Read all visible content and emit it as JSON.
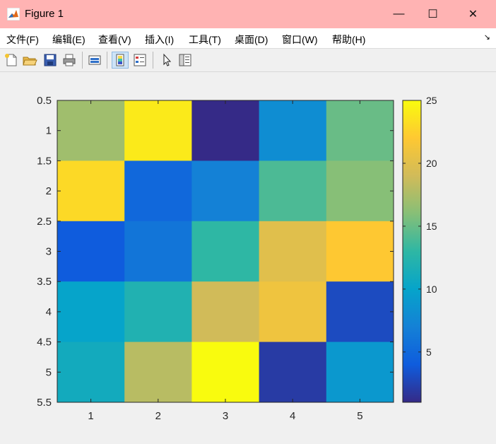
{
  "window": {
    "title": "Figure 1",
    "minimize_glyph": "—",
    "maximize_glyph": "☐",
    "close_glyph": "✕"
  },
  "menu": [
    {
      "label": "文件(F)"
    },
    {
      "label": "编辑(E)"
    },
    {
      "label": "查看(V)"
    },
    {
      "label": "插入(I)"
    },
    {
      "label": "工具(T)"
    },
    {
      "label": "桌面(D)"
    },
    {
      "label": "窗口(W)"
    },
    {
      "label": "帮助(H)"
    }
  ],
  "menu_arrow_glyph": "↘",
  "toolbar": {
    "icons": [
      "new-figure-icon",
      "open-file-icon",
      "save-icon",
      "print-icon",
      "link-plot-icon",
      "colorbar-icon",
      "legend-icon",
      "pointer-icon",
      "property-inspector-icon"
    ]
  },
  "colors": {
    "parula": [
      "#352a87",
      "#0f5cdd",
      "#1481d6",
      "#06a4ca",
      "#2eb7a4",
      "#87bf77",
      "#d1bb59",
      "#fec832",
      "#f9fb0e"
    ]
  },
  "chart_data": {
    "type": "heatmap",
    "colormap": "parula",
    "x": [
      1,
      2,
      3,
      4,
      5
    ],
    "y": [
      1,
      2,
      3,
      4,
      5
    ],
    "values": [
      [
        17,
        24,
        1,
        8,
        15
      ],
      [
        23,
        5,
        7,
        14,
        16
      ],
      [
        4,
        6,
        13,
        20,
        22
      ],
      [
        10,
        12,
        19,
        21,
        3
      ],
      [
        11,
        18,
        25,
        2,
        9
      ]
    ],
    "xlim": [
      0.5,
      5.5
    ],
    "ylim": [
      0.5,
      5.5
    ],
    "y_direction": "reverse",
    "xticks": [
      "1",
      "2",
      "3",
      "4",
      "5"
    ],
    "yticks": [
      "0.5",
      "1",
      "1.5",
      "2",
      "2.5",
      "3",
      "3.5",
      "4",
      "4.5",
      "5",
      "5.5"
    ],
    "colorbar": {
      "range": [
        1,
        25
      ],
      "ticks": [
        "5",
        "10",
        "15",
        "20",
        "25"
      ],
      "placement": "right"
    }
  }
}
